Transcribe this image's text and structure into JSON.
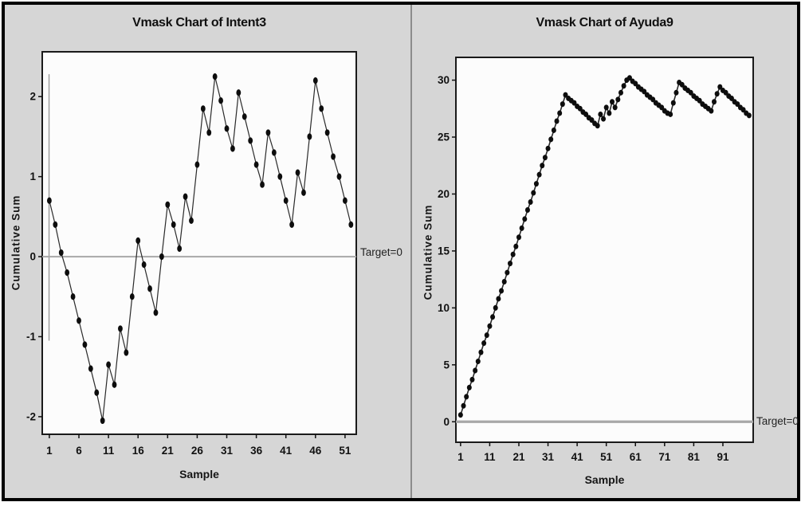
{
  "figure": {
    "background": "#d6d6d6",
    "border_color": "#000000",
    "divider_color": "#8c8c8c",
    "plot_background": "#fcfcfc",
    "frame_color": "#1a1a1a",
    "line_color": "#2a2a2a",
    "marker_color": "#0d0d0d",
    "target_line_color": "#a8a8a8",
    "ref_line_color": "#9a9a9a",
    "tick_color": "#111111",
    "text_color": "#111111"
  },
  "chart_data": [
    {
      "type": "line",
      "title": "Vmask Chart of Intent3",
      "xlabel": "Sample",
      "ylabel": "Cumulative Sum",
      "target": {
        "value": 0,
        "label": "Target=0"
      },
      "x_start": 1,
      "x_step": 1,
      "values": [
        0.7,
        0.4,
        0.05,
        -0.2,
        -0.5,
        -0.8,
        -1.1,
        -1.4,
        -1.7,
        -2.05,
        -1.35,
        -1.6,
        -0.9,
        -1.2,
        -0.5,
        0.2,
        -0.1,
        -0.4,
        -0.7,
        0.0,
        0.65,
        0.4,
        0.1,
        0.75,
        0.45,
        1.15,
        1.85,
        1.55,
        2.25,
        1.95,
        1.6,
        1.35,
        2.05,
        1.75,
        1.45,
        1.15,
        0.9,
        1.55,
        1.3,
        1.0,
        0.7,
        0.4,
        1.05,
        0.8,
        1.5,
        2.2,
        1.85,
        1.55,
        1.25,
        1.0,
        0.7,
        0.4
      ],
      "xticks": {
        "values": [
          1,
          6,
          11,
          16,
          21,
          26,
          31,
          36,
          41,
          46,
          51
        ],
        "labels": [
          "1",
          "6",
          "11",
          "16",
          "21",
          "26",
          "31",
          "36",
          "41",
          "46",
          "51"
        ]
      },
      "yticks": {
        "values": [
          2,
          1,
          0,
          -1,
          -2
        ],
        "labels": [
          "2",
          "1",
          "0",
          "-1",
          "-2"
        ]
      },
      "xlim": [
        -0.2,
        52.9
      ],
      "ylim": [
        -2.22,
        2.56
      ],
      "ref_line": {
        "x": 0.95,
        "y1": -1.05,
        "y2": 2.28
      },
      "grid": false,
      "legend": null
    },
    {
      "type": "line",
      "title": "Vmask Chart of Ayuda9",
      "xlabel": "Sample",
      "ylabel": "Cumulative Sum",
      "target": {
        "value": 0,
        "label": "Target=0"
      },
      "x_start": 1,
      "x_step": 1,
      "values": [
        0.6,
        1.4,
        2.2,
        3.0,
        3.7,
        4.5,
        5.3,
        6.1,
        6.9,
        7.6,
        8.4,
        9.2,
        10.0,
        10.8,
        11.5,
        12.3,
        13.1,
        13.9,
        14.7,
        15.4,
        16.2,
        17.0,
        17.8,
        18.6,
        19.3,
        20.1,
        20.9,
        21.7,
        22.5,
        23.2,
        24.0,
        24.8,
        25.6,
        26.4,
        27.1,
        27.9,
        28.7,
        28.4,
        28.2,
        28.0,
        27.7,
        27.5,
        27.2,
        27.0,
        26.7,
        26.5,
        26.2,
        26.0,
        27.0,
        26.6,
        27.6,
        27.1,
        28.1,
        27.6,
        28.3,
        28.9,
        29.5,
        30.0,
        30.2,
        29.9,
        29.7,
        29.4,
        29.2,
        29.0,
        28.7,
        28.5,
        28.3,
        28.0,
        27.8,
        27.6,
        27.3,
        27.1,
        27.0,
        28.0,
        28.9,
        29.8,
        29.6,
        29.3,
        29.1,
        28.9,
        28.6,
        28.4,
        28.2,
        27.9,
        27.7,
        27.5,
        27.3,
        28.1,
        28.8,
        29.4,
        29.1,
        28.9,
        28.6,
        28.4,
        28.1,
        27.9,
        27.6,
        27.4,
        27.1,
        26.9
      ],
      "xticks": {
        "values": [
          1,
          11,
          21,
          31,
          41,
          51,
          61,
          71,
          81,
          91
        ],
        "labels": [
          "1",
          "11",
          "21",
          "31",
          "41",
          "51",
          "61",
          "71",
          "81",
          "91"
        ]
      },
      "yticks": {
        "values": [
          30,
          25,
          20,
          15,
          10,
          5,
          0
        ],
        "labels": [
          "30",
          "25",
          "20",
          "15",
          "10",
          "5",
          "0"
        ]
      },
      "xlim": [
        -0.6,
        101.4
      ],
      "ylim": [
        -1.8,
        32.0
      ],
      "ref_line": null,
      "grid": false,
      "legend": null
    }
  ]
}
